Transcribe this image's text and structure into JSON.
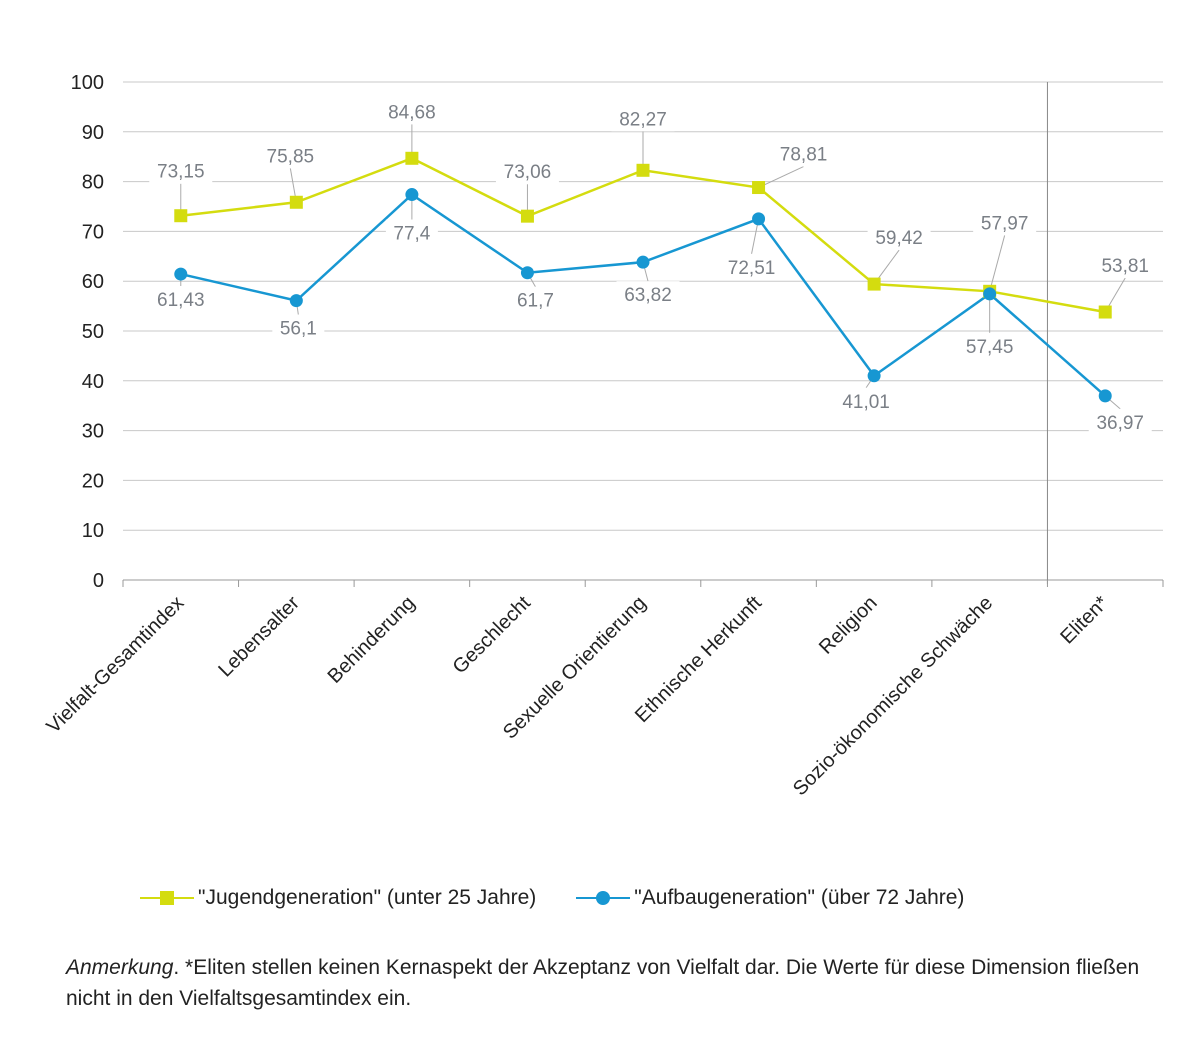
{
  "chart_data": {
    "type": "line",
    "categories": [
      "Vielfalt-Gesamtindex",
      "Lebensalter",
      "Behinderung",
      "Geschlecht",
      "Sexuelle Orientierung",
      "Ethnische Herkunft",
      "Religion",
      "Sozio-ökonomische Schwäche",
      "Eliten*"
    ],
    "series": [
      {
        "name": "\"Jugendgeneration\" (unter 25 Jahre)",
        "color": "#d4dc0f",
        "marker": "square",
        "values": [
          73.15,
          75.85,
          84.68,
          73.06,
          82.27,
          78.81,
          59.42,
          57.97,
          53.81
        ],
        "labels": [
          "73,15",
          "75,85",
          "84,68",
          "73,06",
          "82,27",
          "78,81",
          "59,42",
          "57,97",
          "53,81"
        ]
      },
      {
        "name": "\"Aufbaugeneration\" (über 72 Jahre)",
        "color": "#1797d2",
        "marker": "circle",
        "values": [
          61.43,
          56.1,
          77.4,
          61.7,
          63.82,
          72.51,
          41.01,
          57.45,
          36.97
        ],
        "labels": [
          "61,43",
          "56,1",
          "77,4",
          "61,7",
          "63,82",
          "72,51",
          "41,01",
          "57,45",
          "36,97"
        ]
      }
    ],
    "ylim": [
      0,
      100
    ],
    "yticks": [
      "0",
      "10",
      "20",
      "30",
      "40",
      "50",
      "60",
      "70",
      "80",
      "90",
      "100"
    ],
    "grid": true,
    "legend": "bottom"
  },
  "note": {
    "prefix": "Anmerkung",
    "text": ". *Eliten stellen keinen Kernaspekt der Akzeptanz von Vielfalt dar. Die Werte für diese Dimension fließen nicht in den Vielfaltsgesamtindex ein."
  }
}
